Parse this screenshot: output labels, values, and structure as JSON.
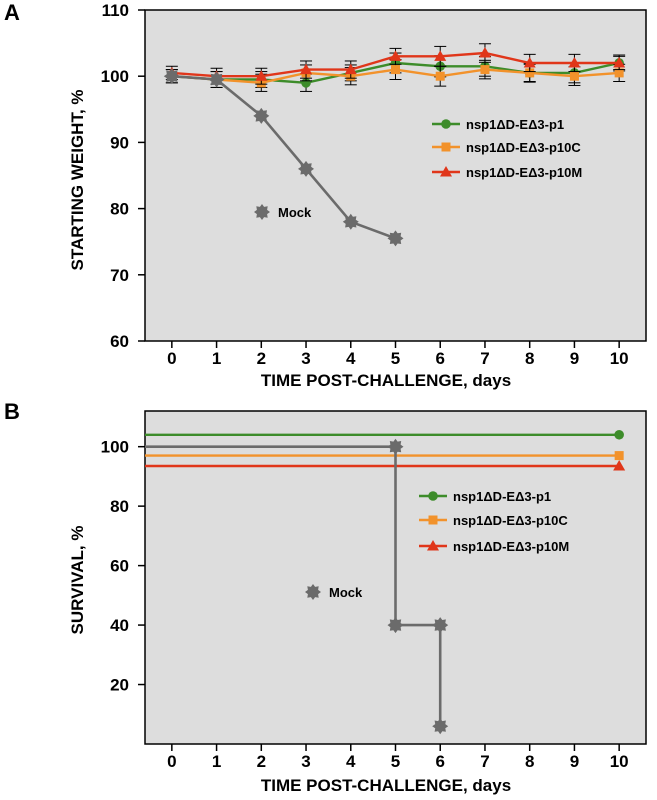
{
  "chart_data": [
    {
      "panel": "A",
      "type": "line",
      "xlabel": "TIME POST-CHALLENGE, days",
      "ylabel": "STARTING WEIGHT, %",
      "xlim": [
        -0.6,
        10.6
      ],
      "ylim": [
        60,
        110
      ],
      "xticks": [
        0,
        1,
        2,
        3,
        4,
        5,
        6,
        7,
        8,
        9,
        10
      ],
      "yticks": [
        60,
        70,
        80,
        90,
        100,
        110
      ],
      "grid": false,
      "legend_position": "right",
      "series": [
        {
          "name": "nsp1ΔD-EΔ3-p1",
          "color": "#3d8c2a",
          "marker": "circle",
          "x": [
            0,
            1,
            2,
            3,
            4,
            5,
            6,
            7,
            8,
            9,
            10
          ],
          "y": [
            100,
            99.5,
            99.5,
            99,
            100.5,
            102,
            101.5,
            101.5,
            100.5,
            100.5,
            102
          ],
          "err": [
            1,
            1.2,
            1.2,
            1.3,
            1.2,
            1.5,
            1.6,
            1.5,
            1.4,
            1.5,
            1.2
          ]
        },
        {
          "name": "nsp1ΔD-EΔ3-p10C",
          "color": "#f2922b",
          "marker": "square",
          "x": [
            0,
            1,
            2,
            3,
            4,
            5,
            6,
            7,
            8,
            9,
            10
          ],
          "y": [
            100,
            99.5,
            99,
            100.5,
            100,
            101,
            100,
            101,
            100.5,
            100,
            100.5
          ],
          "err": [
            1,
            1.2,
            1.3,
            1.2,
            1.3,
            1.5,
            1.5,
            1.4,
            1.3,
            1.4,
            1.3
          ]
        },
        {
          "name": "nsp1ΔD-EΔ3-p10M",
          "color": "#e0361a",
          "marker": "triangle",
          "x": [
            0,
            1,
            2,
            3,
            4,
            5,
            6,
            7,
            8,
            9,
            10
          ],
          "y": [
            100.5,
            100,
            100,
            101,
            101,
            103,
            103,
            103.5,
            102,
            102,
            102
          ],
          "err": [
            1,
            1.2,
            1.2,
            1.3,
            1.3,
            1.2,
            1.5,
            1.4,
            1.3,
            1.3,
            1
          ]
        },
        {
          "name": "Mock",
          "color": "#6b6b6b",
          "marker": "gear",
          "x": [
            0,
            1,
            2,
            3,
            4,
            5
          ],
          "y": [
            100,
            99.5,
            94,
            86,
            78,
            75.5
          ],
          "err": [
            0,
            0,
            0,
            0,
            0,
            0
          ]
        }
      ]
    },
    {
      "panel": "B",
      "type": "line",
      "step": true,
      "xlabel": "TIME POST-CHALLENGE, days",
      "ylabel": "SURVIVAL, %",
      "xlim": [
        -0.6,
        10.6
      ],
      "ylim": [
        0,
        112
      ],
      "xticks": [
        0,
        1,
        2,
        3,
        4,
        5,
        6,
        7,
        8,
        9,
        10
      ],
      "yticks": [
        20,
        40,
        60,
        80,
        100
      ],
      "grid": false,
      "legend_position": "right",
      "series": [
        {
          "name": "nsp1ΔD-EΔ3-p1",
          "color": "#3d8c2a",
          "marker": "circle",
          "x": [
            -0.6,
            10
          ],
          "y": [
            104,
            104
          ],
          "marker_x": [
            10
          ],
          "marker_y": [
            104
          ]
        },
        {
          "name": "nsp1ΔD-EΔ3-p10C",
          "color": "#f2922b",
          "marker": "square",
          "x": [
            -0.6,
            10
          ],
          "y": [
            97,
            97
          ],
          "marker_x": [
            10
          ],
          "marker_y": [
            97
          ]
        },
        {
          "name": "nsp1ΔD-EΔ3-p10M",
          "color": "#e0361a",
          "marker": "triangle",
          "x": [
            -0.6,
            10
          ],
          "y": [
            93.5,
            93.5
          ],
          "marker_x": [
            10
          ],
          "marker_y": [
            93.5
          ]
        },
        {
          "name": "Mock",
          "color": "#6b6b6b",
          "marker": "gear",
          "x": [
            -0.6,
            5,
            5,
            6,
            6
          ],
          "y": [
            100,
            100,
            40,
            40,
            6
          ],
          "marker_x": [
            5,
            5,
            6,
            6
          ],
          "marker_y": [
            100,
            40,
            40,
            6
          ]
        }
      ]
    }
  ]
}
